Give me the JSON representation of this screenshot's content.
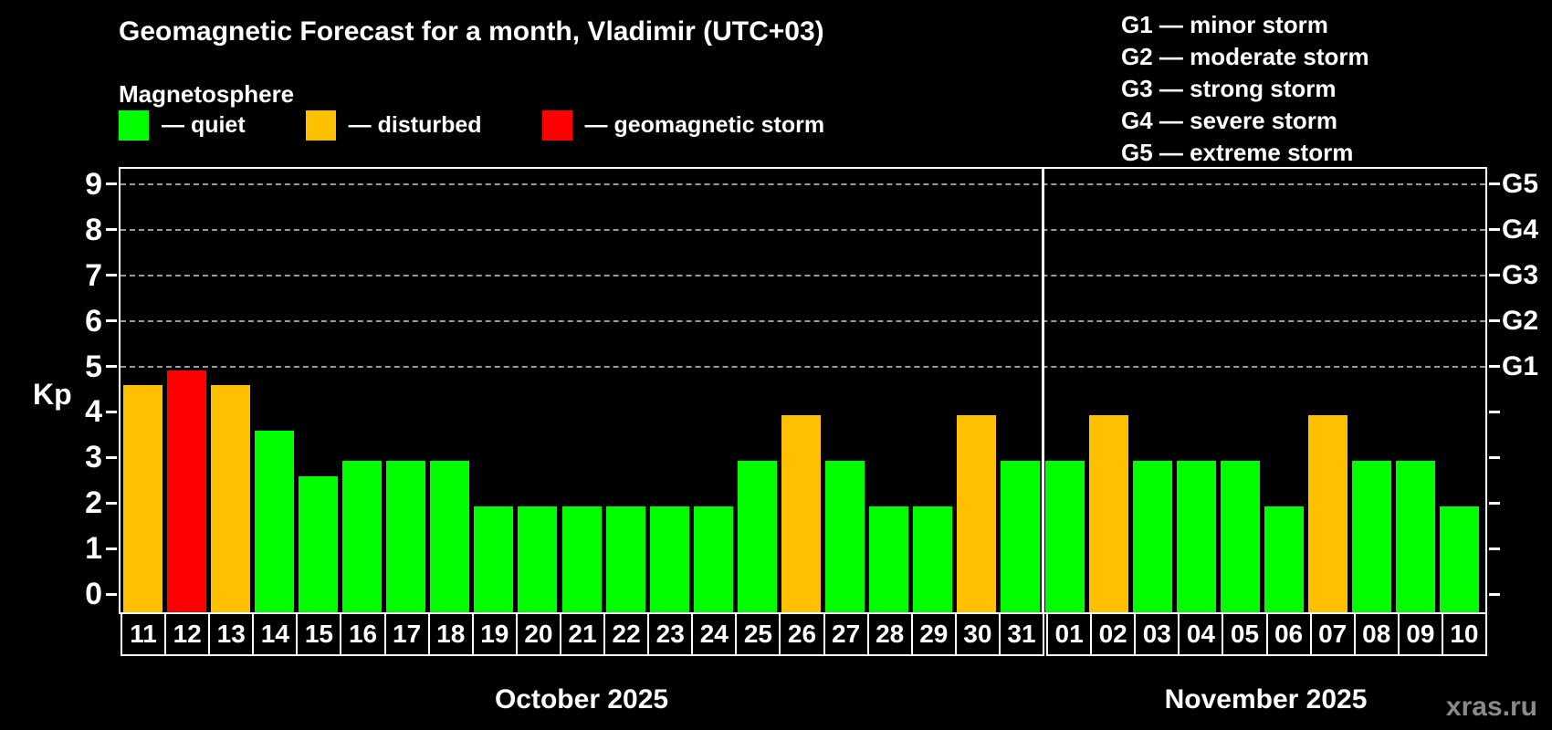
{
  "title": "Geomagnetic Forecast for a month, Vladimir (UTC+03)",
  "subtitle": "Magnetosphere",
  "legend": {
    "items": [
      {
        "key": "quiet",
        "label": "— quiet",
        "color": "#00ff00"
      },
      {
        "key": "disturbed",
        "label": "— disturbed",
        "color": "#ffc000"
      },
      {
        "key": "storm",
        "label": "— geomagnetic storm",
        "color": "#ff0000"
      }
    ]
  },
  "storm_legend": [
    "G1 — minor storm",
    "G2 — moderate storm",
    "G3 — strong storm",
    "G4 — severe storm",
    "G5 — extreme storm"
  ],
  "watermark": "xras.ru",
  "chart_data": {
    "type": "bar",
    "title": "Geomagnetic Forecast for a month, Vladimir (UTC+03)",
    "ylabel": "Kp",
    "ylim": [
      0,
      9
    ],
    "y_ticks": [
      0,
      1,
      2,
      3,
      4,
      5,
      6,
      7,
      8,
      9
    ],
    "grid_dashed_at": [
      5,
      6,
      7,
      8,
      9
    ],
    "g_scale": [
      {
        "label": "G1",
        "kp": 5
      },
      {
        "label": "G2",
        "kp": 6
      },
      {
        "label": "G3",
        "kp": 7
      },
      {
        "label": "G4",
        "kp": 8
      },
      {
        "label": "G5",
        "kp": 9
      }
    ],
    "status_colors": {
      "quiet": "#00ff00",
      "disturbed": "#ffc000",
      "storm": "#ff0000"
    },
    "groups": [
      {
        "label": "October 2025",
        "bars": [
          {
            "day": "11",
            "kp": 4.67,
            "status": "disturbed"
          },
          {
            "day": "12",
            "kp": 5.0,
            "status": "storm"
          },
          {
            "day": "13",
            "kp": 4.67,
            "status": "disturbed"
          },
          {
            "day": "14",
            "kp": 3.67,
            "status": "quiet"
          },
          {
            "day": "15",
            "kp": 2.67,
            "status": "quiet"
          },
          {
            "day": "16",
            "kp": 3,
            "status": "quiet"
          },
          {
            "day": "17",
            "kp": 3,
            "status": "quiet"
          },
          {
            "day": "18",
            "kp": 3,
            "status": "quiet"
          },
          {
            "day": "19",
            "kp": 2,
            "status": "quiet"
          },
          {
            "day": "20",
            "kp": 2,
            "status": "quiet"
          },
          {
            "day": "21",
            "kp": 2,
            "status": "quiet"
          },
          {
            "day": "22",
            "kp": 2,
            "status": "quiet"
          },
          {
            "day": "23",
            "kp": 2,
            "status": "quiet"
          },
          {
            "day": "24",
            "kp": 2,
            "status": "quiet"
          },
          {
            "day": "25",
            "kp": 3,
            "status": "quiet"
          },
          {
            "day": "26",
            "kp": 4,
            "status": "disturbed"
          },
          {
            "day": "27",
            "kp": 3,
            "status": "quiet"
          },
          {
            "day": "28",
            "kp": 2,
            "status": "quiet"
          },
          {
            "day": "29",
            "kp": 2,
            "status": "quiet"
          },
          {
            "day": "30",
            "kp": 4,
            "status": "disturbed"
          },
          {
            "day": "31",
            "kp": 3,
            "status": "quiet"
          }
        ]
      },
      {
        "label": "November 2025",
        "bars": [
          {
            "day": "01",
            "kp": 3,
            "status": "quiet"
          },
          {
            "day": "02",
            "kp": 4,
            "status": "disturbed"
          },
          {
            "day": "03",
            "kp": 3,
            "status": "quiet"
          },
          {
            "day": "04",
            "kp": 3,
            "status": "quiet"
          },
          {
            "day": "05",
            "kp": 3,
            "status": "quiet"
          },
          {
            "day": "06",
            "kp": 2,
            "status": "quiet"
          },
          {
            "day": "07",
            "kp": 4,
            "status": "disturbed"
          },
          {
            "day": "08",
            "kp": 3,
            "status": "quiet"
          },
          {
            "day": "09",
            "kp": 3,
            "status": "quiet"
          },
          {
            "day": "10",
            "kp": 2,
            "status": "quiet"
          }
        ]
      }
    ]
  }
}
